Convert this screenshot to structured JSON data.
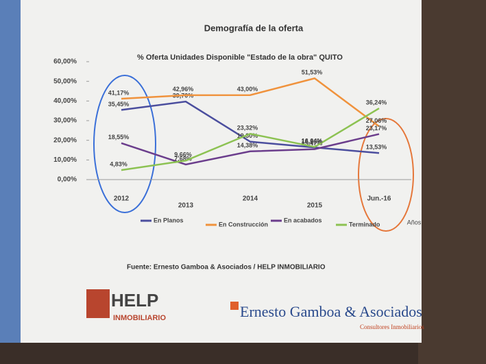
{
  "chart_data": {
    "type": "line",
    "title": "Demografía de la oferta",
    "subtitle": "% Oferta Unidades Disponible \"Estado de la obra\" QUITO",
    "x_label": "Años",
    "categories": [
      "2012",
      "2013",
      "2014",
      "2015",
      "Jun.-16"
    ],
    "series": [
      {
        "name": "En Planos",
        "color": "#4b4e9e",
        "values": [
          35.45,
          39.7,
          19.3,
          16.36,
          13.53
        ],
        "value_labels": [
          "35,45%",
          "39,70%",
          "19,30%",
          "16,36%",
          "13,53%"
        ]
      },
      {
        "name": "En Construcción",
        "color": "#f0923c",
        "values": [
          41.17,
          42.96,
          43.0,
          51.53,
          27.06
        ],
        "value_labels": [
          "41,17%",
          "42,96%",
          "43,00%",
          "51,53%",
          "27,06%"
        ]
      },
      {
        "name": "En acabados",
        "color": "#6b3d8c",
        "values": [
          18.55,
          7.68,
          14.38,
          15.47,
          23.17
        ],
        "value_labels": [
          "18,55%",
          "7,68%",
          "14,38%",
          "15,47%",
          "23,17%"
        ]
      },
      {
        "name": "Terminado",
        "color": "#8cc252",
        "values": [
          4.83,
          9.66,
          23.32,
          16.64,
          36.24
        ],
        "value_labels": [
          "4,83%",
          "9,66%",
          "23,32%",
          "16,64%",
          "36,24%"
        ]
      }
    ],
    "ylim": [
      0,
      60
    ],
    "yticks": [
      {
        "value": 0,
        "label": "0,00%"
      },
      {
        "value": 10,
        "label": "10,00%"
      },
      {
        "value": 20,
        "label": "20,00%"
      },
      {
        "value": 30,
        "label": "30,00%"
      },
      {
        "value": 40,
        "label": "40,00%"
      },
      {
        "value": 50,
        "label": "50,00%"
      },
      {
        "value": 60,
        "label": "60,00%"
      }
    ],
    "source": "Fuente: Ernesto Gamboa & Asociados / HELP INMOBILIARIO",
    "logos": {
      "help": "HELP",
      "help_sub": "INMOBILIARIO",
      "gamboa": "Ernesto Gamboa & Asociados",
      "gamboa_sub": "Consultores Inmobiliarios"
    }
  }
}
